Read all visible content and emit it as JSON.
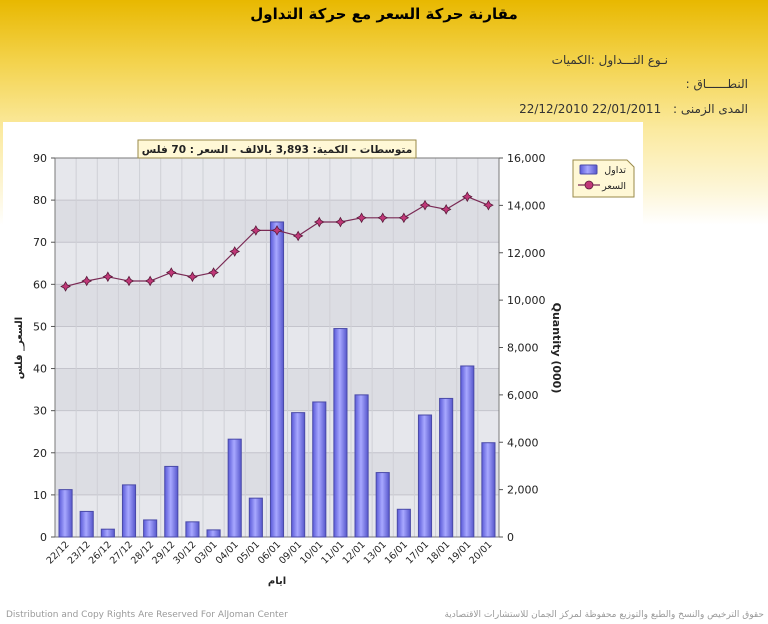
{
  "page": {
    "title": "مقارنة حركة السعر مع حركة التداول",
    "info": {
      "trade_type": {
        "label": "نـوع التـــداول :",
        "value": "الكميات"
      },
      "scope": {
        "label": "النطــــــاق :",
        "value": ""
      },
      "period": {
        "label": "المدى الزمنى :",
        "value": "22/12/2010  22/01/2011"
      }
    },
    "footer_left": "Distribution and Copy Rights Are Reserved For AlJoman Center",
    "footer_right": "حقوق الترخيص والنسخ والطبع والتوزيع محفوظة لمركز الجمان للاستشارات الاقتصادية"
  },
  "colors": {
    "bar": "#8080f0",
    "bar_edge": "#4a4aa8",
    "line": "#7a2a55",
    "marker": "#c03878",
    "plot_bg": "#dcdde3"
  },
  "chart_data": {
    "type": "bar+line",
    "averages_label": "متوسطات - الكمية: 3,893 بالالف  -  السعر : 70 فلس",
    "xlabel": "ايام",
    "ylabel_left": "السعر_ فلس",
    "ylabel_right": "Quantity (000)",
    "ylim_left": [
      0,
      90
    ],
    "yticks_left": [
      "0",
      "10",
      "20",
      "30",
      "40",
      "50",
      "60",
      "70",
      "80",
      "90"
    ],
    "ylim_right": [
      0,
      16000
    ],
    "yticks_right": [
      "0",
      "2,000",
      "4,000",
      "6,000",
      "8,000",
      "10,000",
      "12,000",
      "14,000",
      "16,000"
    ],
    "categories": [
      "22/12",
      "23/12",
      "26/12",
      "27/12",
      "28/12",
      "29/12",
      "30/12",
      "03/01",
      "04/01",
      "05/01",
      "06/01",
      "09/01",
      "10/01",
      "11/01",
      "12/01",
      "13/01",
      "16/01",
      "17/01",
      "18/01",
      "19/01",
      "20/01"
    ],
    "series": [
      {
        "name": "تداول",
        "kind": "bar",
        "axis": "right",
        "values": [
          2000,
          1080,
          330,
          2200,
          720,
          2980,
          640,
          300,
          4130,
          1640,
          13300,
          5250,
          5700,
          8800,
          6000,
          2720,
          1170,
          5150,
          5850,
          7220,
          3980
        ]
      },
      {
        "name": "السعر",
        "kind": "line",
        "axis": "left",
        "values": [
          59.5,
          60.8,
          61.8,
          60.8,
          60.8,
          62.8,
          61.8,
          62.8,
          67.8,
          72.8,
          72.8,
          71.5,
          74.8,
          74.8,
          75.8,
          75.8,
          75.8,
          78.8,
          77.8,
          80.8,
          78.8
        ]
      }
    ],
    "legend_position": "top-right",
    "grid": true
  }
}
